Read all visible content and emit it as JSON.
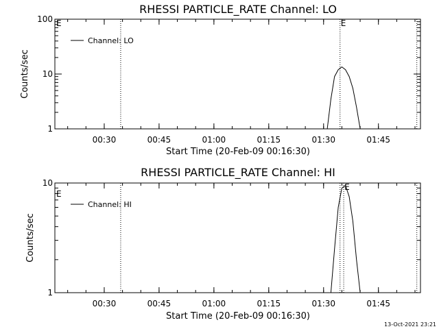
{
  "chart_data": [
    {
      "type": "line",
      "title": "RHESSI PARTICLE_RATE Channel: LO",
      "xlabel": "Start Time (20-Feb-09 00:16:30)",
      "ylabel": "Counts/sec",
      "yscale": "log",
      "ylim": [
        1,
        100
      ],
      "xlim": [
        "00:16:30",
        "01:56:30"
      ],
      "x_ticks": [
        "00:30",
        "00:45",
        "01:00",
        "01:15",
        "01:30",
        "01:45"
      ],
      "y_ticks": [
        "1",
        "10",
        "100"
      ],
      "legend": "top-left",
      "series": [
        {
          "name": "Channel: LO",
          "x": [
            "01:31:00",
            "01:32:00",
            "01:33:00",
            "01:34:00",
            "01:35:00",
            "01:36:00",
            "01:37:00",
            "01:38:00",
            "01:39:00",
            "01:40:00"
          ],
          "y": [
            1.0,
            3.5,
            9.0,
            12.0,
            13.5,
            12.0,
            9.0,
            5.5,
            2.5,
            1.0
          ]
        }
      ],
      "markers": [
        {
          "time": "00:34:30",
          "label": ""
        },
        {
          "time": "01:34:30",
          "label": "E"
        },
        {
          "time": "01:55:30",
          "label": ""
        }
      ],
      "corner_label": "E"
    },
    {
      "type": "line",
      "title": "RHESSI PARTICLE_RATE Channel: HI",
      "xlabel": "Start Time (20-Feb-09 00:16:30)",
      "ylabel": "Counts/sec",
      "yscale": "log",
      "ylim": [
        1,
        10
      ],
      "xlim": [
        "00:16:30",
        "01:56:30"
      ],
      "x_ticks": [
        "00:30",
        "00:45",
        "01:00",
        "01:15",
        "01:30",
        "01:45"
      ],
      "y_ticks": [
        "1",
        "10"
      ],
      "legend": "top-left",
      "series": [
        {
          "name": "Channel: HI",
          "x": [
            "01:32:00",
            "01:33:00",
            "01:34:00",
            "01:35:00",
            "01:36:00",
            "01:37:00",
            "01:38:00",
            "01:39:00",
            "01:40:00"
          ],
          "y": [
            1.0,
            2.5,
            6.0,
            9.0,
            9.5,
            7.5,
            4.5,
            2.0,
            1.0
          ]
        }
      ],
      "markers": [
        {
          "time": "00:34:30",
          "label": ""
        },
        {
          "time": "01:34:30",
          "label": ""
        },
        {
          "time": "01:35:30",
          "label": "E"
        },
        {
          "time": "01:55:30",
          "label": ""
        }
      ],
      "corner_label": "E"
    }
  ],
  "footer_timestamp": "13-Oct-2021 23:21"
}
